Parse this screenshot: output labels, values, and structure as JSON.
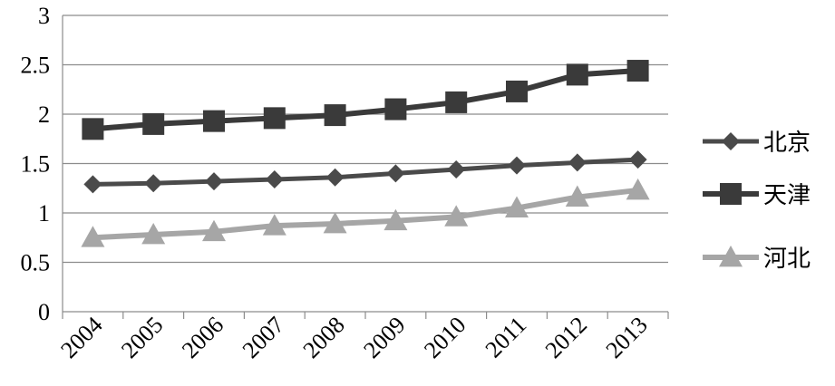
{
  "chart_data": {
    "type": "line",
    "categories": [
      "2004",
      "2005",
      "2006",
      "2007",
      "2008",
      "2009",
      "2010",
      "2011",
      "2012",
      "2013"
    ],
    "series": [
      {
        "name": "北京",
        "marker": "diamond",
        "color": "#4a4a4a",
        "values": [
          1.29,
          1.3,
          1.32,
          1.34,
          1.36,
          1.4,
          1.44,
          1.48,
          1.51,
          1.54
        ]
      },
      {
        "name": "天津",
        "marker": "square",
        "color": "#3a3a3a",
        "values": [
          1.85,
          1.9,
          1.93,
          1.96,
          1.99,
          2.05,
          2.12,
          2.23,
          2.4,
          2.44
        ]
      },
      {
        "name": "河北",
        "marker": "triangle",
        "color": "#a6a6a6",
        "values": [
          0.75,
          0.78,
          0.81,
          0.87,
          0.89,
          0.92,
          0.96,
          1.05,
          1.16,
          1.23
        ]
      }
    ],
    "y_ticks": [
      "0",
      "0.5",
      "1",
      "1.5",
      "2",
      "2.5",
      "3"
    ],
    "ylim": [
      0,
      3
    ],
    "grid": true,
    "legend_position": "right",
    "title": "",
    "xlabel": "",
    "ylabel": ""
  }
}
